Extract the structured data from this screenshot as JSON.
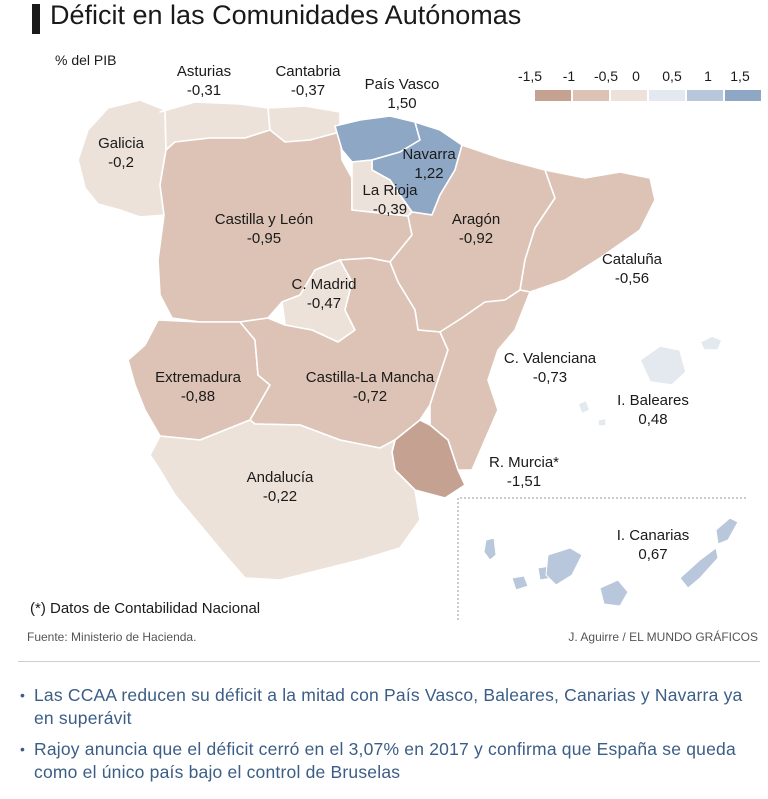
{
  "header": {
    "title": "Déficit en las Comunidades Autónomas",
    "unit_label": "% del PIB"
  },
  "legend": {
    "ticks": [
      "-1,5",
      "-1",
      "-0,5",
      "0",
      "0,5",
      "1",
      "1,5"
    ],
    "bins": [
      {
        "from": -1.5,
        "to": -1,
        "color": "#c4a191"
      },
      {
        "from": -1,
        "to": -0.5,
        "color": "#dcc3b5"
      },
      {
        "from": -0.5,
        "to": 0,
        "color": "#ede2da"
      },
      {
        "from": 0,
        "to": 0.5,
        "color": "#e4e8ef"
      },
      {
        "from": 0.5,
        "to": 1,
        "color": "#b8c7db"
      },
      {
        "from": 1,
        "to": 1.5,
        "color": "#8ea7c5"
      }
    ]
  },
  "map_data": {
    "regions": [
      {
        "name": "Asturias",
        "value": "-0,31"
      },
      {
        "name": "Cantabria",
        "value": "-0,37"
      },
      {
        "name": "País Vasco",
        "value": "1,50"
      },
      {
        "name": "Galicia",
        "value": "-0,2"
      },
      {
        "name": "Navarra",
        "value": "1,22"
      },
      {
        "name": "La Rioja",
        "value": "-0,39"
      },
      {
        "name": "Castilla y León",
        "value": "-0,95"
      },
      {
        "name": "Aragón",
        "value": "-0,92"
      },
      {
        "name": "Cataluña",
        "value": "-0,56"
      },
      {
        "name": "C. Madrid",
        "value": "-0,47"
      },
      {
        "name": "C. Valenciana",
        "value": "-0,73"
      },
      {
        "name": "Extremadura",
        "value": "-0,88"
      },
      {
        "name": "Castilla-La Mancha",
        "value": "-0,72"
      },
      {
        "name": "I. Baleares",
        "value": "0,48"
      },
      {
        "name": "R. Murcia*",
        "value": "-1,51"
      },
      {
        "name": "Andalucía",
        "value": "-0,22"
      },
      {
        "name": "I. Canarias",
        "value": "0,67"
      }
    ]
  },
  "footnote": "(*) Datos de Contabilidad Nacional",
  "source": "Fuente: Ministerio de Hacienda.",
  "credit": "J. Aguirre / EL MUNDO GRÁFICOS",
  "related_links": [
    "Las CCAA reducen su déficit a la mitad con País Vasco, Baleares, Canarias y Navarra ya en superávit",
    "Rajoy anuncia que el déficit cerró en el 3,07% en 2017 y confirma que España se queda como el único país bajo el control de Bruselas"
  ]
}
